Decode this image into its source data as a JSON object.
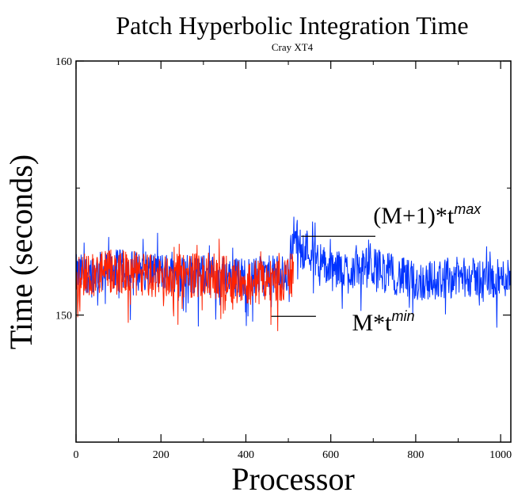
{
  "chart_data": {
    "type": "line",
    "title": "Patch Hyperbolic Integration Time",
    "subtitle": "Cray XT4",
    "xlabel": "Processor",
    "ylabel": "Time (seconds)",
    "xlim": [
      0,
      1024
    ],
    "ylim": [
      145,
      160
    ],
    "x_ticks": [
      0,
      200,
      400,
      600,
      800,
      1000
    ],
    "x_tick_labels": [
      "0",
      "200",
      "400",
      "600",
      "800",
      "1000"
    ],
    "y_ticks": [
      150,
      160
    ],
    "y_tick_labels": [
      "150",
      "160"
    ],
    "grid": false,
    "series": [
      {
        "color": "#0033ff",
        "x_range": [
          0,
          1024
        ],
        "sample_x": [
          0,
          100,
          200,
          300,
          400,
          500,
          510,
          600,
          700,
          800,
          900,
          1000,
          1024
        ],
        "sample_y": [
          151.6,
          151.8,
          151.7,
          151.6,
          151.5,
          151.6,
          153.2,
          151.7,
          151.9,
          151.3,
          151.5,
          151.4,
          151.6
        ],
        "typical_min": 150.8,
        "typical_max": 152.4
      },
      {
        "color": "#ff2200",
        "x_range": [
          0,
          512
        ],
        "sample_x": [
          0,
          100,
          200,
          300,
          400,
          500,
          512
        ],
        "sample_y": [
          151.6,
          151.7,
          151.5,
          151.6,
          151.3,
          151.4,
          151.7
        ],
        "typical_min": 150.6,
        "typical_max": 152.4
      }
    ],
    "annotations": [
      {
        "id": "max",
        "base": "(M+1)*t",
        "sup": "max",
        "line_x": [
          530,
          705
        ],
        "line_y": 153.1,
        "text_x": 700,
        "text_y": 153.6
      },
      {
        "id": "min",
        "base": "M*t",
        "sup": "min",
        "line_x": [
          460,
          565
        ],
        "line_y": 149.95,
        "text_x": 650,
        "text_y": 149.4
      }
    ]
  }
}
